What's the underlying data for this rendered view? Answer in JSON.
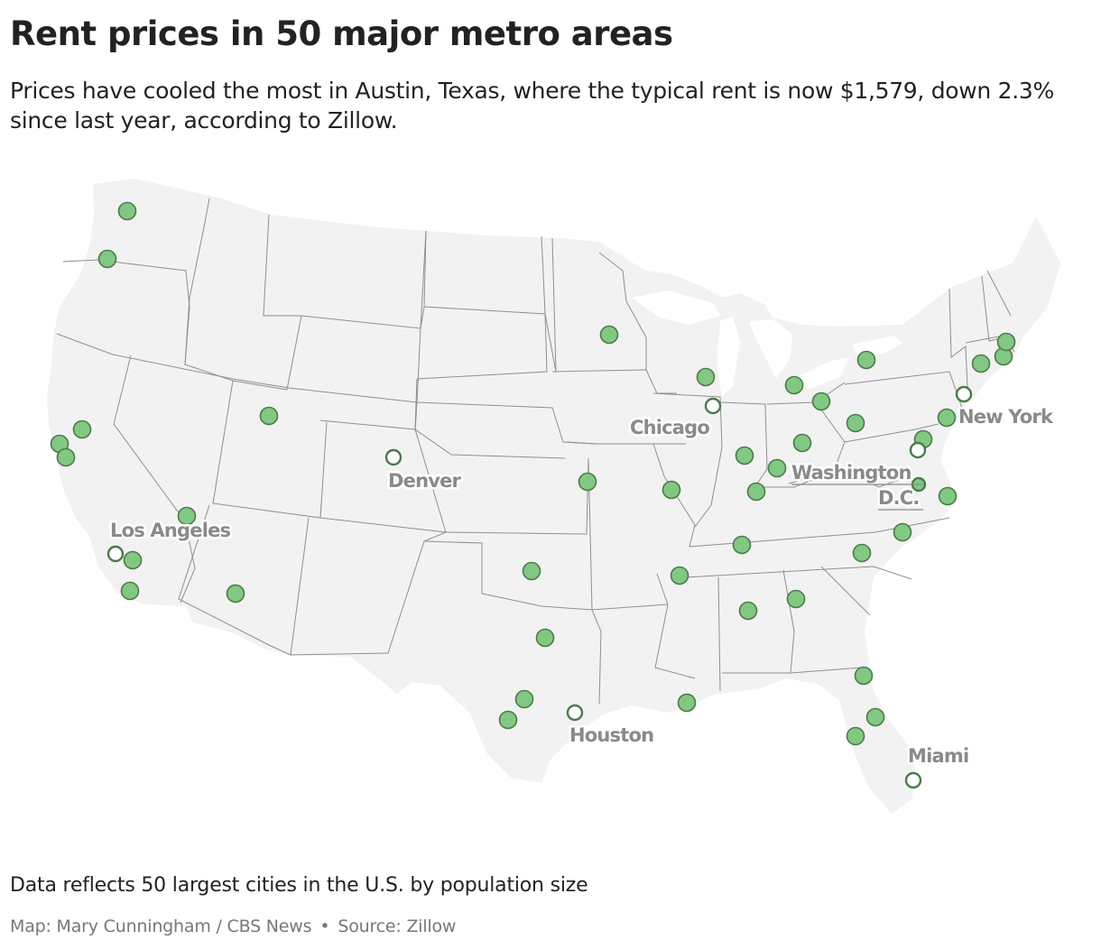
{
  "header": {
    "title": "Rent prices in 50 major metro areas",
    "subtitle": "Prices have cooled the most in Austin, Texas, where the typical rent is now $1,579, down 2.3% since last year, according to Zillow."
  },
  "map": {
    "region": "Contiguous United States",
    "marker_color": "#82c882",
    "marker_stroke": "#4a7a4a",
    "land_color": "#f2f2f2",
    "border_color": "#8f8f8f",
    "labeled_cities": [
      {
        "id": "los-angeles",
        "name": "Los Angeles"
      },
      {
        "id": "denver",
        "name": "Denver"
      },
      {
        "id": "chicago",
        "name": "Chicago"
      },
      {
        "id": "new-york",
        "name": "New York"
      },
      {
        "id": "washington",
        "name": "Washington D.C."
      },
      {
        "id": "houston",
        "name": "Houston"
      },
      {
        "id": "miami",
        "name": "Miami"
      }
    ],
    "label_lines": {
      "los_angeles": "Los Angeles",
      "denver": "Denver",
      "chicago": "Chicago",
      "new_york": "New York",
      "washington_1": "Washington",
      "washington_2": "D.C.",
      "houston": "Houston",
      "miami": "Miami"
    },
    "metro_count": 50
  },
  "footer": {
    "note": "Data reflects 50 largest cities in the U.S. by population size",
    "credit": "Map: Mary Cunningham / CBS News",
    "separator": "•",
    "source": "Source: Zillow"
  }
}
